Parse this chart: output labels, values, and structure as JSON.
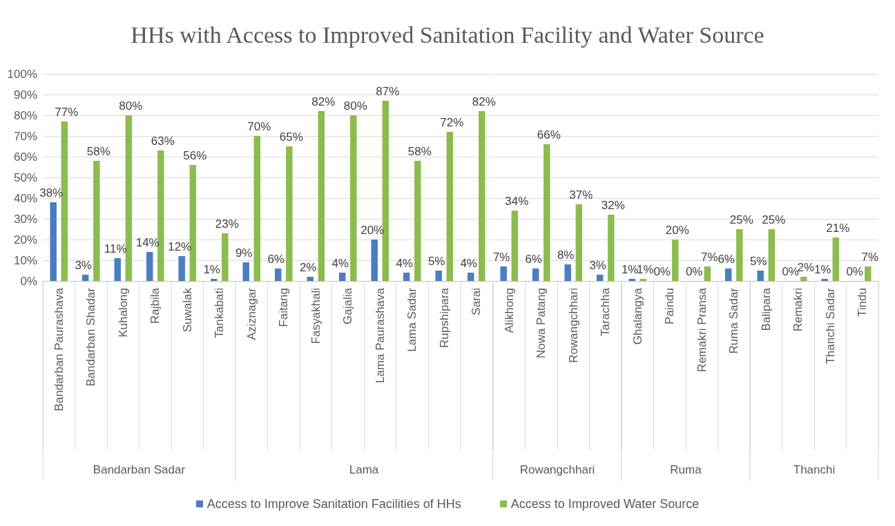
{
  "chart_data": [
    {
      "type": "bar",
      "title": "HHs with Access to Improved Sanitation Facility and Water Source",
      "xlabel": "Bandarban Sadar",
      "categories": [
        "Bandarban Paurashava",
        "Bandarban Shadar",
        "Kuhalong",
        "Rajbila",
        "Suwalak",
        "Tankabati"
      ],
      "series": [
        {
          "name": "Access to Improve Sanitation Facilities of HHs",
          "color": "#4a7ebf",
          "values": [
            38,
            3,
            11,
            14,
            12,
            1
          ],
          "value_labels": [
            "38%",
            "3%",
            "11%",
            "14%",
            "12%",
            "1%"
          ]
        },
        {
          "name": "Access to Improved Water Source",
          "color": "#8cbc4f",
          "values": [
            77,
            58,
            80,
            63,
            56,
            23
          ],
          "value_labels": [
            "77%",
            "58%",
            "80%",
            "63%",
            "56%",
            "23%"
          ]
        }
      ],
      "ylim": [
        0,
        100
      ],
      "yticks": [
        {
          "value": 0,
          "label": "0%"
        },
        {
          "value": 10,
          "label": "10%"
        },
        {
          "value": 20,
          "label": "20%"
        },
        {
          "value": 30,
          "label": "30%"
        },
        {
          "value": 40,
          "label": "40%"
        },
        {
          "value": 50,
          "label": "50%"
        },
        {
          "value": 60,
          "label": "60%"
        },
        {
          "value": 70,
          "label": "70%"
        },
        {
          "value": 80,
          "label": "80%"
        },
        {
          "value": 90,
          "label": "90%"
        },
        {
          "value": 100,
          "label": "100%"
        }
      ],
      "grid": "y",
      "legend": "bottom"
    },
    {
      "type": "bar",
      "xlabel": "Lama",
      "categories": [
        "Aziznagar",
        "Faitang",
        "Fasyakhali",
        "Gajalia",
        "Lama Paurashava",
        "Lama Sadar",
        "Rupshipara",
        "Sarai"
      ],
      "series": [
        {
          "color": "#4a7ebf",
          "values": [
            9,
            6,
            2,
            4,
            20,
            4,
            5,
            4
          ],
          "value_labels": [
            "9%",
            "6%",
            "2%",
            "4%",
            "20%",
            "4%",
            "5%",
            "4%"
          ]
        },
        {
          "color": "#8cbc4f",
          "values": [
            70,
            65,
            82,
            80,
            87,
            58,
            72,
            82
          ],
          "value_labels": [
            "70%",
            "65%",
            "82%",
            "80%",
            "87%",
            "58%",
            "72%",
            "82%"
          ]
        }
      ],
      "ylim": [
        0,
        100
      ],
      "yticks": [
        0,
        10,
        20,
        30,
        40,
        50,
        60,
        70,
        80,
        90,
        100
      ],
      "grid": "y",
      "tick_labels": "x"
    },
    {
      "type": "bar",
      "xlabel": "Rowangchhari",
      "categories": [
        "Alikhong",
        "Nowa Patang",
        "Rowangchhari",
        "Tarachha"
      ],
      "series": [
        {
          "color": "#4a7ebf",
          "values": [
            7,
            6,
            8,
            3
          ],
          "value_labels": [
            "7%",
            "6%",
            "8%",
            "3%"
          ]
        },
        {
          "color": "#8cbc4f",
          "values": [
            34,
            66,
            37,
            32
          ],
          "value_labels": [
            "34%",
            "66%",
            "37%",
            "32%"
          ]
        }
      ],
      "ylim": [
        0,
        100
      ],
      "yticks": [
        0,
        10,
        20,
        30,
        40,
        50,
        60,
        70,
        80,
        90,
        100
      ],
      "grid": "y",
      "tick_labels": "x"
    },
    {
      "type": "bar",
      "xlabel": "Ruma",
      "categories": [
        "Ghalangya",
        "Paindu",
        "Remakri Pransa",
        "Ruma Sadar"
      ],
      "series": [
        {
          "color": "#4a7ebf",
          "values": [
            1,
            0,
            0,
            6
          ],
          "value_labels": [
            "1%",
            "0%",
            "0%",
            "6%"
          ]
        },
        {
          "color": "#8cbc4f",
          "values": [
            1,
            20,
            7,
            25
          ],
          "value_labels": [
            "1%",
            "20%",
            "7%",
            "25%"
          ]
        }
      ],
      "ylim": [
        0,
        100
      ],
      "yticks": [
        0,
        10,
        20,
        30,
        40,
        50,
        60,
        70,
        80,
        90,
        100
      ],
      "grid": "y",
      "tick_labels": "x"
    },
    {
      "type": "bar",
      "xlabel": "Thanchi",
      "categories": [
        "Balipara",
        "Remakri",
        "Thanchi Sadar",
        "Tindu"
      ],
      "series": [
        {
          "color": "#4a7ebf",
          "values": [
            5,
            0,
            1,
            0
          ],
          "value_labels": [
            "5%",
            "0%",
            "1%",
            "0%"
          ]
        },
        {
          "color": "#8cbc4f",
          "values": [
            25,
            2,
            21,
            7
          ],
          "value_labels": [
            "25%",
            "2%",
            "21%",
            "7%"
          ]
        }
      ],
      "ylim": [
        0,
        100
      ],
      "yticks": [
        0,
        10,
        20,
        30,
        40,
        50,
        60,
        70,
        80,
        90,
        100
      ],
      "grid": "y",
      "tick_labels": "x"
    }
  ]
}
